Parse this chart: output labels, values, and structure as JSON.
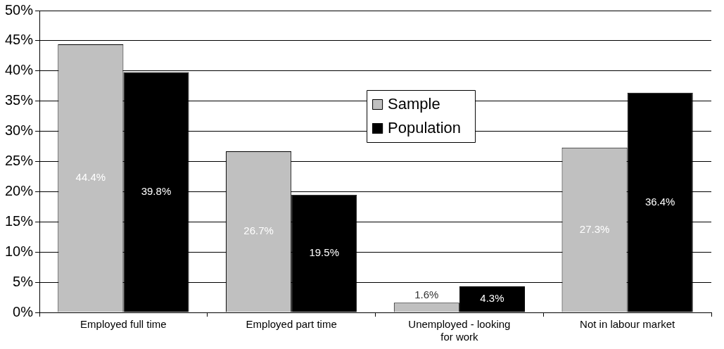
{
  "chart_data": {
    "type": "bar",
    "categories": [
      "Employed full time",
      "Employed part time",
      "Unemployed - looking for work",
      "Not in labour market"
    ],
    "series": [
      {
        "name": "Sample",
        "color": "#c0c0c0",
        "values": [
          44.4,
          26.7,
          1.6,
          27.3
        ],
        "value_labels": [
          "44.4%",
          "26.7%",
          "1.6%",
          "27.3%"
        ]
      },
      {
        "name": "Population",
        "color": "#000000",
        "values": [
          39.8,
          19.5,
          4.3,
          36.4
        ],
        "value_labels": [
          "39.8%",
          "19.5%",
          "4.3%",
          "36.4%"
        ]
      }
    ],
    "ylim": [
      0,
      50
    ],
    "yticks": [
      {
        "value": 0,
        "label": "0%"
      },
      {
        "value": 5,
        "label": "5%"
      },
      {
        "value": 10,
        "label": "10%"
      },
      {
        "value": 15,
        "label": "15%"
      },
      {
        "value": 20,
        "label": "20%"
      },
      {
        "value": 25,
        "label": "25%"
      },
      {
        "value": 30,
        "label": "30%"
      },
      {
        "value": 35,
        "label": "35%"
      },
      {
        "value": 40,
        "label": "40%"
      },
      {
        "value": 45,
        "label": "45%"
      },
      {
        "value": 50,
        "label": "50%"
      }
    ],
    "grid": "y",
    "legend": "top"
  }
}
